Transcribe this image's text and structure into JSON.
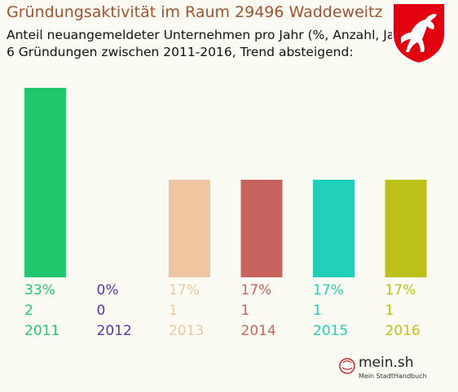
{
  "header": {
    "title": "Gründungsaktivität im Raum 29496 Waddeweitz",
    "subtitle_line1": "Anteil neuangemeldeter Unternehmen pro Jahr (%, Anzahl, Jahr)",
    "subtitle_line2": "6 Gründungen zwischen 2011-2016, Trend absteigend:"
  },
  "crest": {
    "icon": "saxon-steed-crest-icon",
    "color": "#e3000f"
  },
  "brand": {
    "name": "mein.sh",
    "tagline": "Mein StadtHandbuch"
  },
  "chart_data": {
    "type": "bar",
    "categories": [
      "2011",
      "2012",
      "2013",
      "2014",
      "2015",
      "2016"
    ],
    "values": [
      33,
      0,
      17,
      17,
      17,
      17
    ],
    "percent_labels": [
      "33%",
      "0%",
      "17%",
      "17%",
      "17%",
      "17%"
    ],
    "counts": [
      "2",
      "0",
      "1",
      "1",
      "1",
      "1"
    ],
    "colors": [
      "#22c86e",
      "#5533aa",
      "#eec6a2",
      "#c8645e",
      "#1fcfba",
      "#bcc018"
    ],
    "ylim": [
      0,
      33
    ],
    "grid": false,
    "legend": "none"
  }
}
